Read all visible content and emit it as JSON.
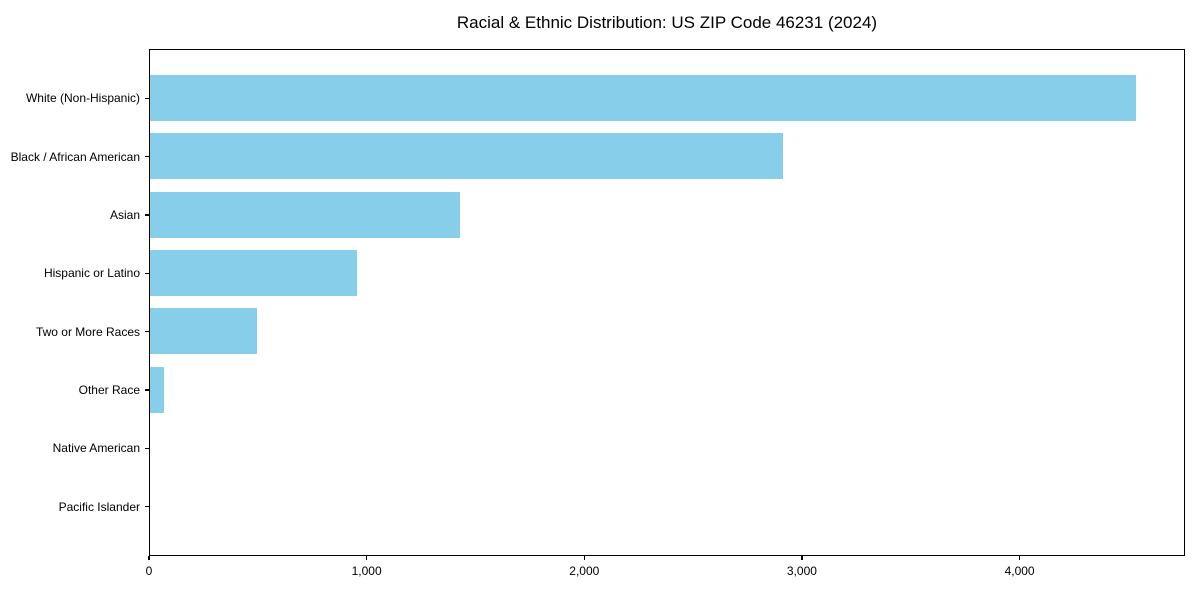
{
  "chart_data": {
    "type": "bar",
    "orientation": "horizontal",
    "title": "Racial & Ethnic Distribution: US ZIP Code 46231 (2024)",
    "categories": [
      "White (Non-Hispanic)",
      "Black / African American",
      "Asian",
      "Hispanic or Latino",
      "Two or More Races",
      "Other Race",
      "Native American",
      "Pacific Islander"
    ],
    "values": [
      4530,
      2910,
      1425,
      950,
      490,
      65,
      0,
      0
    ],
    "xlabel": "",
    "ylabel": "",
    "xlim": [
      0,
      4760
    ],
    "x_ticks": [
      0,
      1000,
      2000,
      3000,
      4000
    ],
    "x_tick_labels": [
      "0",
      "1,000",
      "2,000",
      "3,000",
      "4,000"
    ],
    "bar_color": "#87CEEB",
    "axis_color": "#000000",
    "text_color": "#000000",
    "background_color": "#ffffff",
    "grid": false,
    "legend": null
  }
}
